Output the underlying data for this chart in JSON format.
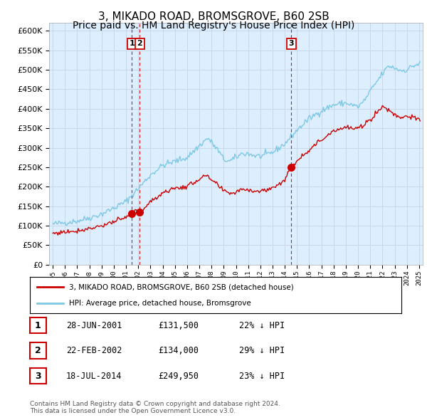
{
  "title": "3, MIKADO ROAD, BROMSGROVE, B60 2SB",
  "subtitle": "Price paid vs. HM Land Registry's House Price Index (HPI)",
  "ylim": [
    0,
    620000
  ],
  "yticks": [
    0,
    50000,
    100000,
    150000,
    200000,
    250000,
    300000,
    350000,
    400000,
    450000,
    500000,
    550000,
    600000
  ],
  "xlim_start": 1994.7,
  "xlim_end": 2025.3,
  "legend_line1": "3, MIKADO ROAD, BROMSGROVE, B60 2SB (detached house)",
  "legend_line2": "HPI: Average price, detached house, Bromsgrove",
  "transactions": [
    {
      "num": 1,
      "date": "28-JUN-2001",
      "price": 131500,
      "pct": "22%",
      "dir": "↓",
      "year": 2001.49
    },
    {
      "num": 2,
      "date": "22-FEB-2002",
      "price": 134000,
      "pct": "29%",
      "dir": "↓",
      "year": 2002.13
    },
    {
      "num": 3,
      "date": "18-JUL-2014",
      "price": 249950,
      "pct": "23%",
      "dir": "↓",
      "year": 2014.54
    }
  ],
  "footnote1": "Contains HM Land Registry data © Crown copyright and database right 2024.",
  "footnote2": "This data is licensed under the Open Government Licence v3.0.",
  "hpi_color": "#7ec8e3",
  "price_color": "#cc0000",
  "vline_color": "#cc0000",
  "grid_color": "#c8d8e8",
  "chart_bg": "#ddeeff",
  "background_color": "#ffffff",
  "title_fontsize": 11,
  "subtitle_fontsize": 10
}
